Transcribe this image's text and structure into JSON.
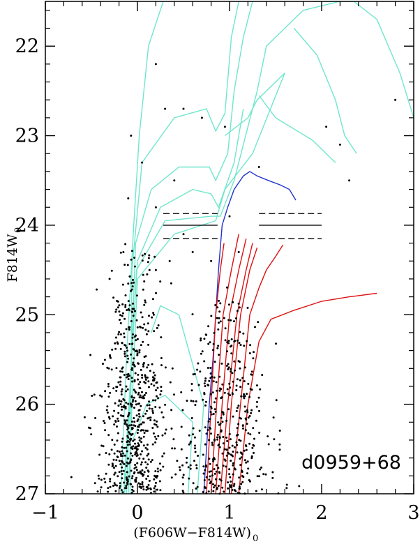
{
  "chart_data": {
    "type": "scatter",
    "label": "d0959+68",
    "xlabel_main": "(F606W−F814W)",
    "xlabel_sub": "0",
    "ylabel_main": "F814W",
    "ylabel_sub": "0",
    "xlim": [
      -1,
      3
    ],
    "ylim": [
      27,
      21.5
    ],
    "xticks": [
      -1,
      0,
      1,
      2,
      3
    ],
    "xtick_labels": [
      "−1",
      "0",
      "1",
      "2",
      "3"
    ],
    "yticks": [
      22,
      23,
      24,
      25,
      26,
      27
    ],
    "ytick_labels": [
      "22",
      "23",
      "24",
      "25",
      "26",
      "27"
    ],
    "grid": false,
    "reference_lines": [
      {
        "y": 24.0,
        "style": "solid",
        "segments": [
          [
            0.28,
            0.87
          ],
          [
            1.32,
            2.0
          ]
        ]
      },
      {
        "y": 23.87,
        "style": "dashed",
        "segments": [
          [
            0.28,
            0.87
          ],
          [
            1.32,
            2.0
          ]
        ]
      },
      {
        "y": 24.15,
        "style": "dashed",
        "segments": [
          [
            0.28,
            0.87
          ],
          [
            1.32,
            2.0
          ]
        ]
      }
    ],
    "colors": {
      "young": "#6fe6cc",
      "intermediate": "#2233cc",
      "old": "#dd1111",
      "stars": "#000000"
    },
    "isochrones": [
      {
        "group": "young",
        "points": [
          [
            -0.18,
            27
          ],
          [
            -0.12,
            25.5
          ],
          [
            -0.04,
            24.0
          ],
          [
            0.02,
            23.0
          ],
          [
            0.12,
            22.0
          ],
          [
            0.28,
            21.5
          ]
        ]
      },
      {
        "group": "young",
        "points": [
          [
            -0.08,
            27
          ],
          [
            -0.06,
            24.5
          ],
          [
            0.05,
            23.3
          ],
          [
            0.4,
            22.8
          ],
          [
            0.75,
            22.7
          ],
          [
            0.85,
            22.95
          ],
          [
            0.95,
            22.75
          ],
          [
            1.02,
            21.9
          ],
          [
            1.1,
            21.5
          ]
        ]
      },
      {
        "group": "young",
        "points": [
          [
            -0.12,
            27
          ],
          [
            -0.02,
            24.2
          ],
          [
            0.15,
            23.6
          ],
          [
            0.45,
            23.35
          ],
          [
            0.78,
            23.35
          ],
          [
            0.85,
            23.5
          ],
          [
            0.98,
            23.2
          ],
          [
            1.05,
            22.5
          ],
          [
            1.15,
            21.9
          ],
          [
            1.25,
            21.5
          ]
        ]
      },
      {
        "group": "young",
        "points": [
          [
            -0.15,
            27
          ],
          [
            0.0,
            24.4
          ],
          [
            0.25,
            23.8
          ],
          [
            0.6,
            23.6
          ],
          [
            0.8,
            23.65
          ],
          [
            0.88,
            23.8
          ],
          [
            1.05,
            23.3
          ],
          [
            1.15,
            22.7
          ]
        ]
      },
      {
        "group": "young",
        "points": [
          [
            -0.14,
            27
          ],
          [
            -0.01,
            24.5
          ],
          [
            0.3,
            23.95
          ],
          [
            0.8,
            23.9
          ],
          [
            0.9,
            23.9
          ],
          [
            1.05,
            23.5
          ],
          [
            1.2,
            22.9
          ],
          [
            1.3,
            22.5
          ]
        ]
      },
      {
        "group": "young",
        "points": [
          [
            -0.1,
            27
          ],
          [
            0.0,
            24.6
          ],
          [
            0.4,
            24.1
          ],
          [
            0.85,
            23.95
          ],
          [
            0.95,
            23.6
          ],
          [
            1.25,
            23.2
          ],
          [
            1.6,
            22.3
          ]
        ]
      },
      {
        "group": "young",
        "points": [
          [
            0.55,
            27
          ],
          [
            0.6,
            26.2
          ],
          [
            0.3,
            25.9
          ],
          [
            0.1,
            26.0
          ],
          [
            -0.05,
            26.4
          ]
        ]
      },
      {
        "group": "young",
        "points": [
          [
            0.65,
            27
          ],
          [
            0.72,
            26.0
          ],
          [
            0.45,
            25.0
          ],
          [
            0.25,
            24.9
          ],
          [
            0.15,
            25.2
          ]
        ]
      },
      {
        "group": "young",
        "points": [
          [
            0.95,
            23.0
          ],
          [
            1.2,
            22.8
          ],
          [
            1.3,
            22.6
          ],
          [
            1.6,
            22.3
          ]
        ]
      },
      {
        "group": "young",
        "points": [
          [
            1.3,
            22.5
          ],
          [
            1.4,
            22.0
          ],
          [
            1.8,
            21.6
          ],
          [
            2.2,
            21.5
          ]
        ]
      },
      {
        "group": "young",
        "points": [
          [
            1.32,
            22.55
          ],
          [
            1.5,
            22.8
          ],
          [
            1.9,
            23.05
          ],
          [
            2.15,
            23.3
          ]
        ]
      },
      {
        "group": "young",
        "points": [
          [
            1.7,
            21.8
          ],
          [
            1.95,
            22.1
          ],
          [
            2.15,
            22.6
          ],
          [
            2.25,
            23.0
          ],
          [
            2.38,
            23.2
          ]
        ]
      },
      {
        "group": "young",
        "points": [
          [
            1.9,
            21.5
          ],
          [
            2.35,
            21.5
          ],
          [
            2.6,
            21.7
          ],
          [
            2.85,
            22.3
          ],
          [
            3.0,
            22.8
          ]
        ]
      },
      {
        "group": "intermediate",
        "points": [
          [
            0.72,
            27
          ],
          [
            0.75,
            26.5
          ],
          [
            0.78,
            26.0
          ],
          [
            0.82,
            25.5
          ],
          [
            0.85,
            25.0
          ],
          [
            0.88,
            24.5
          ],
          [
            0.92,
            24.0
          ],
          [
            0.98,
            23.8
          ],
          [
            1.05,
            23.6
          ],
          [
            1.15,
            23.45
          ],
          [
            1.22,
            23.4
          ],
          [
            1.3,
            23.45
          ],
          [
            1.42,
            23.5
          ],
          [
            1.55,
            23.55
          ],
          [
            1.65,
            23.6
          ],
          [
            1.72,
            23.72
          ]
        ]
      },
      {
        "group": "old",
        "points": [
          [
            0.75,
            27
          ],
          [
            0.8,
            26.0
          ],
          [
            0.85,
            25.0
          ],
          [
            0.9,
            24.5
          ],
          [
            0.94,
            24.2
          ]
        ]
      },
      {
        "group": "old",
        "points": [
          [
            0.8,
            27
          ],
          [
            0.86,
            26.0
          ],
          [
            0.93,
            25.0
          ],
          [
            1.02,
            24.5
          ],
          [
            1.1,
            24.1
          ]
        ]
      },
      {
        "group": "old",
        "points": [
          [
            0.85,
            27
          ],
          [
            0.92,
            26.0
          ],
          [
            1.0,
            25.0
          ],
          [
            1.1,
            24.5
          ],
          [
            1.18,
            24.15
          ]
        ]
      },
      {
        "group": "old",
        "points": [
          [
            0.9,
            27
          ],
          [
            0.98,
            26.0
          ],
          [
            1.08,
            25.0
          ],
          [
            1.18,
            24.5
          ],
          [
            1.25,
            24.2
          ]
        ]
      },
      {
        "group": "old",
        "points": [
          [
            0.95,
            27
          ],
          [
            1.02,
            26.0
          ],
          [
            1.12,
            25.0
          ],
          [
            1.22,
            24.5
          ],
          [
            1.3,
            24.25
          ]
        ]
      },
      {
        "group": "old",
        "points": [
          [
            1.02,
            27
          ],
          [
            1.12,
            26.0
          ],
          [
            1.22,
            25.0
          ],
          [
            1.32,
            24.7
          ],
          [
            1.4,
            24.5
          ],
          [
            1.5,
            24.35
          ],
          [
            1.58,
            24.22
          ]
        ]
      },
      {
        "group": "old",
        "points": [
          [
            1.1,
            27
          ],
          [
            1.2,
            26.0
          ],
          [
            1.32,
            25.3
          ],
          [
            1.45,
            25.05
          ],
          [
            1.7,
            24.95
          ],
          [
            2.0,
            24.85
          ],
          [
            2.3,
            24.8
          ],
          [
            2.6,
            24.76
          ]
        ]
      }
    ],
    "stars": {
      "blue_plume": {
        "count": 650,
        "x_mean": -0.05,
        "x_sd": 0.17,
        "y_min": 24.2,
        "y_max": 27
      },
      "red_branch": {
        "count": 430,
        "x_mean": 0.95,
        "x_sd": 0.22,
        "y_min": 24.6,
        "y_max": 27
      },
      "bright_sparse": [
        [
          0.2,
          22.2
        ],
        [
          0.3,
          22.7
        ],
        [
          0.5,
          22.7
        ],
        [
          0.7,
          22.8
        ],
        [
          -0.07,
          23.0
        ],
        [
          0.95,
          22.9
        ],
        [
          1.32,
          23.35
        ],
        [
          2.05,
          22.9
        ],
        [
          2.2,
          23.1
        ],
        [
          2.3,
          23.5
        ],
        [
          2.8,
          22.6
        ],
        [
          0.05,
          23.3
        ],
        [
          0.4,
          23.5
        ],
        [
          0.2,
          23.8
        ],
        [
          -0.1,
          23.7
        ],
        [
          1.0,
          23.9
        ],
        [
          0.5,
          24.1
        ],
        [
          0.6,
          24.3
        ],
        [
          0.2,
          24.5
        ],
        [
          0.35,
          24.4
        ],
        [
          0.8,
          24.4
        ],
        [
          1.1,
          24.3
        ]
      ]
    }
  }
}
